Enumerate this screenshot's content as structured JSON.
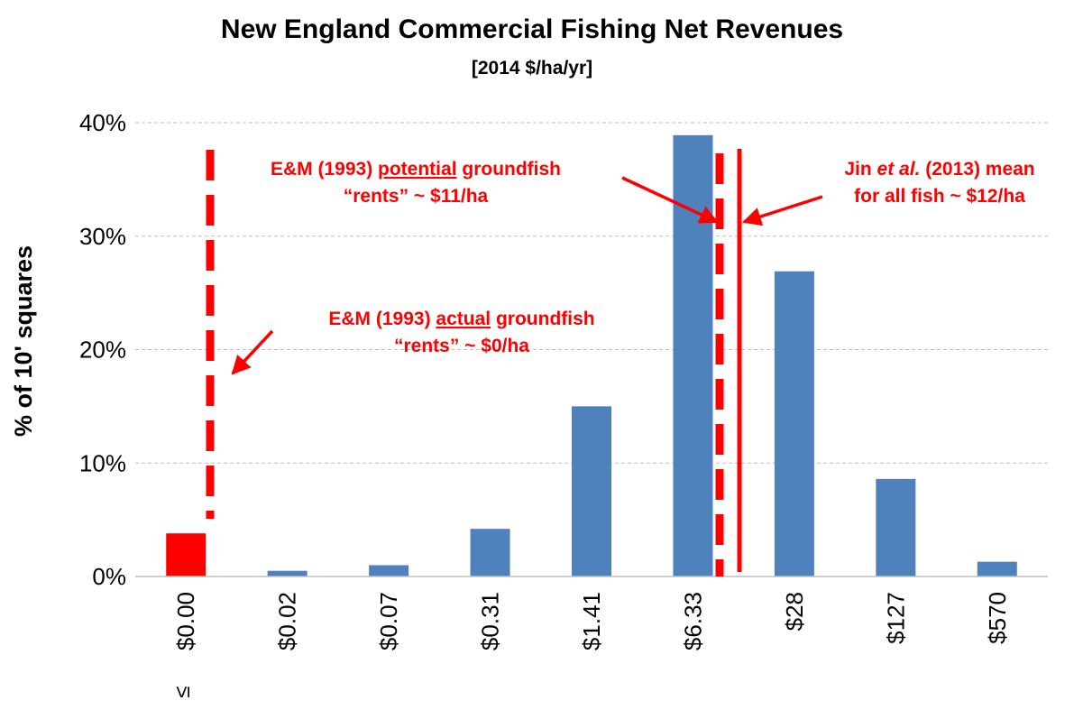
{
  "chart_data": {
    "type": "bar",
    "title": "New England Commercial Fishing Net Revenues",
    "subtitle": "[2014 $/ha/yr]",
    "ylabel": "% of 10' squares",
    "xlabel": "",
    "ylim": [
      0,
      40
    ],
    "yticks": [
      "0%",
      "10%",
      "20%",
      "30%",
      "40%"
    ],
    "grid": true,
    "categories": [
      "$0.00",
      "$0.02",
      "$0.07",
      "$0.31",
      "$1.41",
      "$6.33",
      "$28",
      "$127",
      "$570"
    ],
    "first_category_suffix": "≤",
    "values": [
      3.8,
      0.5,
      1.0,
      4.2,
      15.0,
      38.9,
      26.9,
      8.6,
      1.3
    ],
    "colors": {
      "bar": "#4f81bd",
      "highlight_bar": "#ff0000",
      "annotation": "#ff0000",
      "grid": "#bfbfbf"
    },
    "highlight_index": 0,
    "reference_lines": [
      {
        "label": "E&M (1993) actual groundfish rents",
        "value_per_ha": 0,
        "style": "dashed"
      },
      {
        "label": "E&M (1993) potential groundfish rents",
        "value_per_ha": 11,
        "style": "dashed"
      },
      {
        "label": "Jin et al. (2013) mean for all fish",
        "value_per_ha": 12,
        "style": "solid"
      }
    ],
    "annotations": {
      "potential": {
        "line1_pre": "E&M (1993) ",
        "line1_u": "potential",
        "line1_post": " groundfish",
        "line2": "“rents” ~ $11/ha"
      },
      "actual": {
        "line1_pre": "E&M (1993) ",
        "line1_u": "actual",
        "line1_post": " groundfish",
        "line2": "“rents” ~ $0/ha"
      },
      "jin": {
        "line1_pre": "Jin ",
        "line1_i": "et al.",
        "line1_post": " (2013) mean",
        "line2": "for all fish ~ $12/ha"
      }
    }
  }
}
